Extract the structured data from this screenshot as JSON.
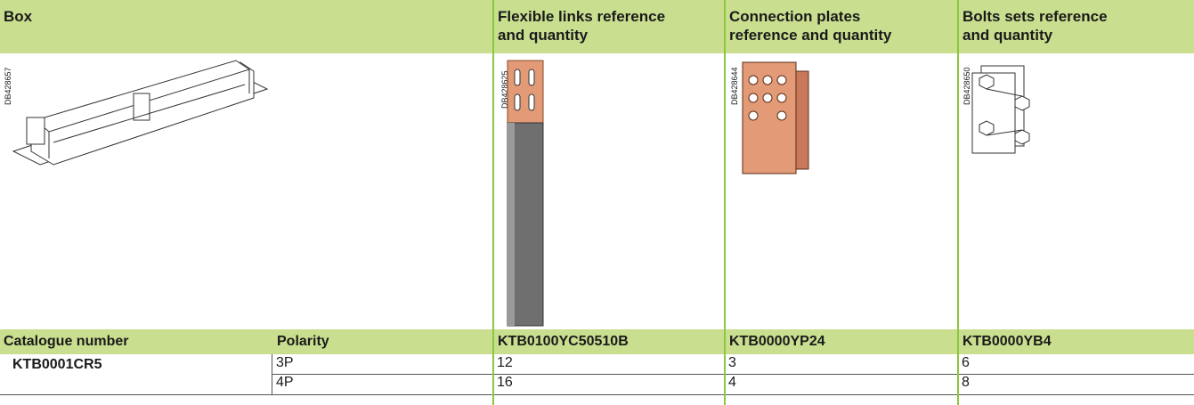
{
  "header": [
    [
      "Box"
    ],
    [
      "Flexible links reference",
      "and quantity"
    ],
    [
      "Connection plates",
      "reference and quantity"
    ],
    [
      "Bolts sets reference",
      "and quantity"
    ]
  ],
  "image_codes": [
    "DB428657",
    "DB428625",
    "DB428644",
    "DB428650"
  ],
  "table": {
    "columns": [
      "Catalogue number",
      "Polarity",
      "KTB0100YC50510B",
      "KTB0000YP24",
      "KTB0000YB4"
    ],
    "catalogue_number": "KTB0001CR5",
    "rows": [
      [
        "3P",
        "12",
        "3",
        "6"
      ],
      [
        "4P",
        "16",
        "4",
        "8"
      ]
    ]
  }
}
